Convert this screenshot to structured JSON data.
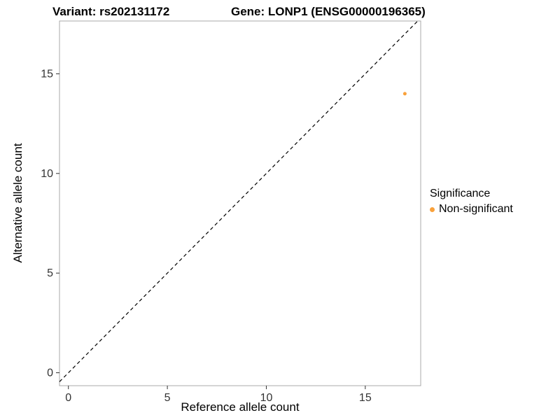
{
  "chart_data": {
    "type": "scatter",
    "title_left": "Variant: rs202131172",
    "title_right": "Gene: LONP1 (ENSG00000196365)",
    "xlabel": "Reference allele count",
    "ylabel": "Alternative allele count",
    "xlim": [
      -0.45,
      17.8
    ],
    "ylim": [
      -0.65,
      17.65
    ],
    "xticks": [
      0,
      5,
      10,
      15
    ],
    "yticks": [
      0,
      5,
      10,
      15
    ],
    "grid": false,
    "points": [
      {
        "x": 17,
        "y": 14,
        "series": "Non-significant"
      }
    ],
    "reference_line": {
      "equation": "y = x",
      "style": "dashed",
      "color": "#000000"
    },
    "point_color": "#F9A13B",
    "panel_border_color": "#A8A8A8",
    "tick_color": "#333333",
    "legend": {
      "title": "Significance",
      "position": "right",
      "entries": [
        {
          "label": "Non-significant",
          "color": "#F9A13B"
        }
      ]
    }
  }
}
